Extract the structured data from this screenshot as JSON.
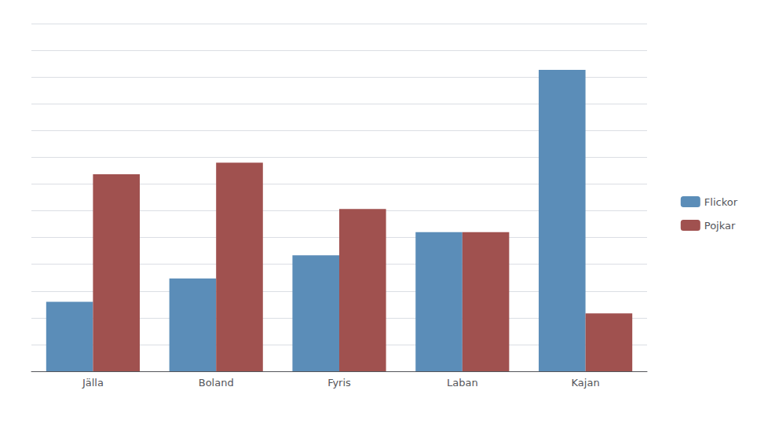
{
  "chart_data": {
    "type": "bar",
    "categories": [
      "Jälla",
      "Boland",
      "Fyris",
      "Laban",
      "Kajan"
    ],
    "series": [
      {
        "name": "Flickor",
        "color": "#5B8DB8",
        "values": [
          6,
          8,
          10,
          12,
          26
        ]
      },
      {
        "name": "Pojkar",
        "color": "#A0514F",
        "values": [
          17,
          18,
          14,
          12,
          5
        ]
      }
    ],
    "ylim": [
      0,
      30
    ],
    "yticks": [
      0,
      2.3076923076923075,
      4.615384615384615,
      6.923076923076923,
      9.23076923076923,
      11.538461538461538,
      13.846153846153847,
      16.153846153846153,
      18.46153846153846,
      20.76923076923077,
      23.076923076923077,
      25.384615384615383,
      27.692307692307693,
      30
    ],
    "grid": true,
    "legend": "right",
    "tick_labels": "x"
  }
}
